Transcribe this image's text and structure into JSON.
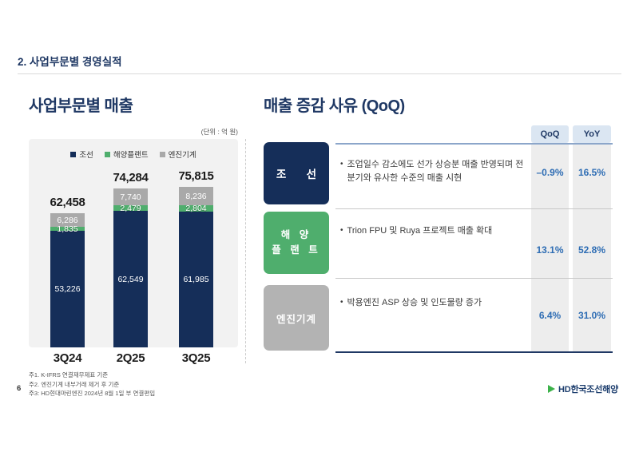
{
  "page": {
    "title": "2. 사업부문별 경영실적",
    "page_number": "6",
    "logo_text": "HD한국조선해양"
  },
  "left_section": {
    "title": "사업부문별 매출",
    "unit_label": "(단위 : 억 원)",
    "footnotes": [
      "주1. K-IFRS 연결재무제표 기준",
      "주2. 엔진기계 내부거래 제거 후 기준",
      "주3: HD현대마린엔진 2024년 8월 1일 부 연결편입"
    ]
  },
  "chart_data": {
    "type": "bar",
    "stacked": true,
    "title": "사업부문별 매출",
    "unit": "억 원",
    "categories": [
      "3Q24",
      "2Q25",
      "3Q25"
    ],
    "series": [
      {
        "name": "조선",
        "color": "#152e59",
        "values": [
          53226,
          62549,
          61985
        ]
      },
      {
        "name": "해양플랜트",
        "color": "#4fae6d",
        "values": [
          1835,
          2479,
          2804
        ]
      },
      {
        "name": "엔진기계",
        "color": "#a9a9a9",
        "values": [
          6286,
          7740,
          8236
        ]
      }
    ],
    "totals": [
      62458,
      74284,
      75815
    ],
    "legend_position": "top",
    "grid": false,
    "value_labels": "white-inside-segments"
  },
  "right_section": {
    "title": "매출 증감 사유 (QoQ)",
    "table": {
      "headers": {
        "qoq": "QoQ",
        "yoy": "YoY"
      },
      "rows": [
        {
          "category": "조선",
          "category_lines": [
            "조 선"
          ],
          "color": "#152e59",
          "note": "조업일수 감소에도 선가 상승분 매출 반영되며 전 분기와 유사한 수준의 매출 시현",
          "qoq": "–0.9%",
          "yoy": "16.5%"
        },
        {
          "category": "해양플랜트",
          "category_lines": [
            "해 양",
            "플 랜 트"
          ],
          "color": "#4fae6d",
          "note": "Trion FPU 및 Ruya 프로젝트 매출 확대",
          "qoq": "13.1%",
          "yoy": "52.8%"
        },
        {
          "category": "엔진기계",
          "category_lines": [
            "엔진기계"
          ],
          "color": "#b3b3b3",
          "note": "박용엔진 ASP 상승 및 인도물량 증가",
          "qoq": "6.4%",
          "yoy": "31.0%"
        }
      ]
    }
  },
  "colors": {
    "title_navy": "#1f3864",
    "header_cell_bg": "#dbe6f2",
    "value_strip_bg": "#ededed",
    "header_line": "#8ca6ca",
    "bottom_line": "#1f3864",
    "value_text_blue": "#2e6db4",
    "chart_panel_bg": "#f2f2f2"
  }
}
